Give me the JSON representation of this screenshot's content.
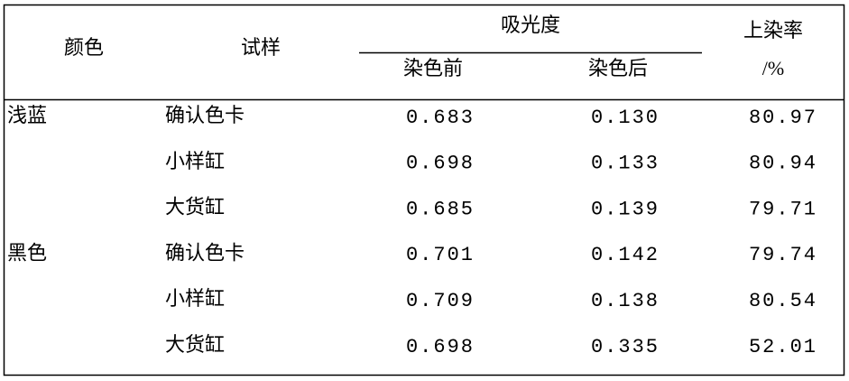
{
  "table": {
    "header": {
      "color": "颜色",
      "sample": "试样",
      "absorbance": "吸光度",
      "before": "染色前",
      "after": "染色后",
      "rate": "上染率",
      "rate_unit": "/%"
    },
    "groups": [
      {
        "color": "浅蓝",
        "rows": [
          [
            "确认色卡",
            "0.683",
            "0.130",
            "80.97"
          ],
          [
            "小样缸",
            "0.698",
            "0.133",
            "80.94"
          ],
          [
            "大货缸",
            "0.685",
            "0.139",
            "79.71"
          ]
        ]
      },
      {
        "color": "黑色",
        "rows": [
          [
            "确认色卡",
            "0.701",
            "0.142",
            "79.74"
          ],
          [
            "小样缸",
            "0.709",
            "0.138",
            "80.54"
          ],
          [
            "大货缸",
            "0.698",
            "0.335",
            "52.01"
          ]
        ]
      }
    ]
  }
}
